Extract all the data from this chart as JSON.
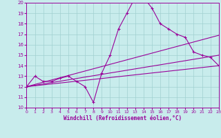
{
  "xlabel": "Windchill (Refroidissement éolien,°C)",
  "xlim": [
    0,
    23
  ],
  "ylim": [
    10,
    20
  ],
  "yticks": [
    10,
    11,
    12,
    13,
    14,
    15,
    16,
    17,
    18,
    19,
    20
  ],
  "xticks": [
    0,
    1,
    2,
    3,
    4,
    5,
    6,
    7,
    8,
    9,
    10,
    11,
    12,
    13,
    14,
    15,
    16,
    17,
    18,
    19,
    20,
    21,
    22,
    23
  ],
  "bg_color": "#c8ecec",
  "grid_color": "#a0d0d0",
  "line_color": "#990099",
  "curve": {
    "x": [
      0,
      1,
      2,
      3,
      4,
      5,
      6,
      7,
      8,
      9,
      10,
      11,
      12,
      13,
      14,
      15,
      16,
      17,
      18,
      19,
      20,
      21,
      22,
      23
    ],
    "y": [
      12.0,
      13.0,
      12.5,
      12.5,
      12.8,
      13.0,
      12.5,
      12.0,
      10.5,
      13.3,
      15.0,
      17.5,
      19.0,
      20.5,
      20.5,
      19.5,
      18.0,
      17.5,
      17.0,
      16.7,
      15.3,
      15.0,
      14.8,
      14.0
    ]
  },
  "straight_lines": [
    {
      "x": [
        0,
        23
      ],
      "y": [
        12.0,
        14.0
      ]
    },
    {
      "x": [
        0,
        23
      ],
      "y": [
        12.0,
        15.0
      ]
    },
    {
      "x": [
        0,
        23
      ],
      "y": [
        12.0,
        16.9
      ]
    }
  ]
}
